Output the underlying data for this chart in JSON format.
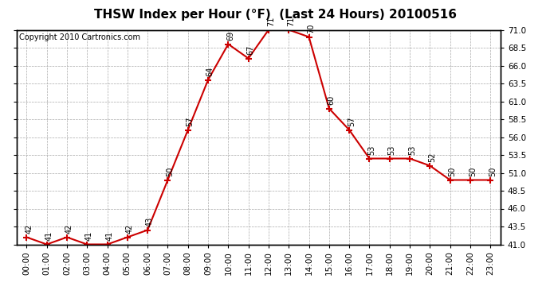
{
  "title": "THSW Index per Hour (°F)  (Last 24 Hours) 20100516",
  "copyright": "Copyright 2010 Cartronics.com",
  "hours": [
    "00:00",
    "01:00",
    "02:00",
    "03:00",
    "04:00",
    "05:00",
    "06:00",
    "07:00",
    "08:00",
    "09:00",
    "10:00",
    "11:00",
    "12:00",
    "13:00",
    "14:00",
    "15:00",
    "16:00",
    "17:00",
    "18:00",
    "19:00",
    "20:00",
    "21:00",
    "22:00",
    "23:00"
  ],
  "values": [
    42,
    41,
    42,
    41,
    41,
    42,
    43,
    50,
    57,
    64,
    69,
    67,
    71,
    71,
    70,
    60,
    57,
    53,
    53,
    53,
    52,
    50,
    50,
    50
  ],
  "line_color": "#cc0000",
  "marker_color": "#cc0000",
  "bg_color": "#ffffff",
  "grid_color": "#aaaaaa",
  "ylim_min": 41.0,
  "ylim_max": 71.0,
  "ytick_step": 2.5,
  "title_fontsize": 11,
  "label_fontsize": 7.5,
  "copyright_fontsize": 7,
  "annot_fontsize": 7
}
